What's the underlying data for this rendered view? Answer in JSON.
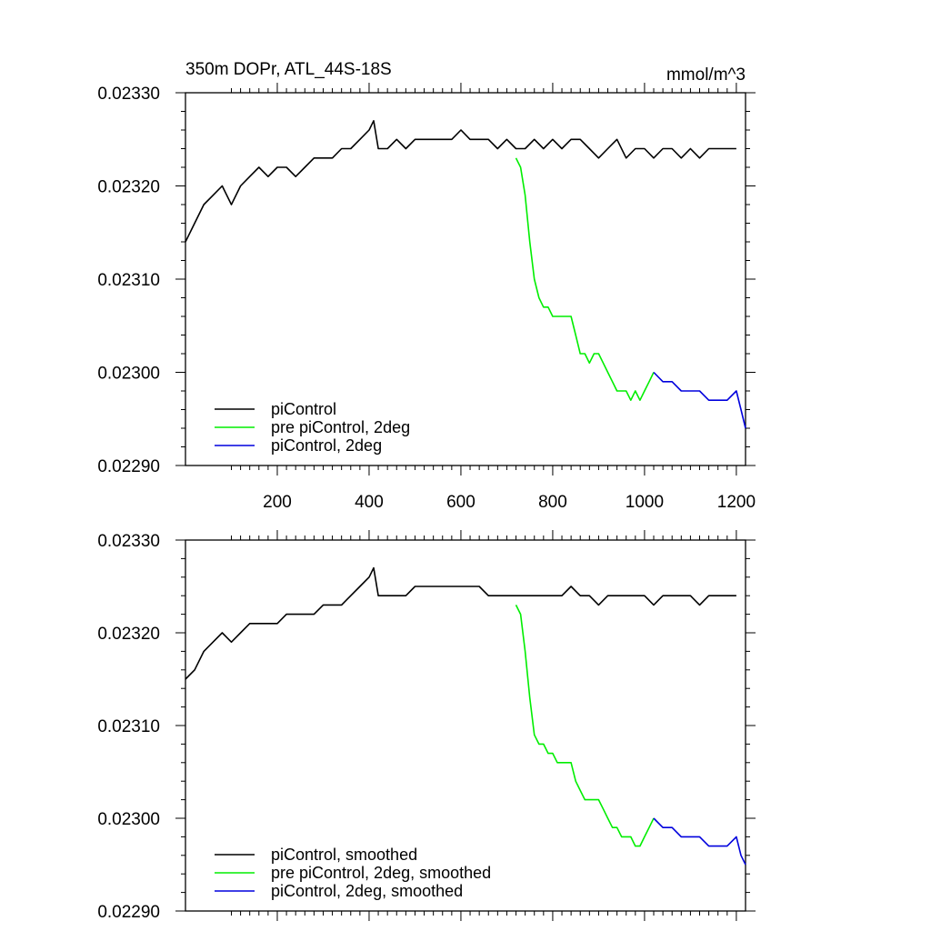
{
  "page": {
    "title": "350m DOPr, ATL_44S-18S",
    "units": "mmol/m^3"
  },
  "colors": {
    "piControl": "#000000",
    "pre": "#00ee00",
    "two_deg": "#0000dd"
  },
  "chart_data": [
    {
      "type": "line",
      "title": "350m DOPr, ATL_44S-18S",
      "units": "mmol/m^3",
      "xlim": [
        0,
        1220
      ],
      "ylim": [
        0.0229,
        0.0233
      ],
      "xticks": [
        200,
        400,
        600,
        800,
        1000,
        1200
      ],
      "xtick_labels": [
        "200",
        "400",
        "600",
        "800",
        "1000",
        "1200"
      ],
      "yticks": [
        0.0229,
        0.023,
        0.0231,
        0.0232,
        0.0233
      ],
      "ytick_labels": [
        "0.02290",
        "0.02300",
        "0.02310",
        "0.02320",
        "0.02330"
      ],
      "legend_position": "bottom-left",
      "series": [
        {
          "name": "piControl",
          "color": "#000000",
          "x": [
            0,
            20,
            40,
            60,
            80,
            100,
            120,
            140,
            160,
            180,
            200,
            220,
            240,
            260,
            280,
            300,
            320,
            340,
            360,
            380,
            400,
            410,
            420,
            440,
            460,
            480,
            500,
            520,
            540,
            560,
            580,
            600,
            620,
            640,
            660,
            680,
            700,
            720,
            740,
            760,
            780,
            800,
            820,
            840,
            860,
            880,
            900,
            920,
            940,
            960,
            980,
            1000,
            1020,
            1040,
            1060,
            1080,
            1100,
            1120,
            1140,
            1160,
            1180,
            1200
          ],
          "y": [
            0.02314,
            0.02316,
            0.02318,
            0.02319,
            0.0232,
            0.02318,
            0.0232,
            0.02321,
            0.02322,
            0.02321,
            0.02322,
            0.02322,
            0.02321,
            0.02322,
            0.02323,
            0.02323,
            0.02323,
            0.02324,
            0.02324,
            0.02325,
            0.02326,
            0.02327,
            0.02324,
            0.02324,
            0.02325,
            0.02324,
            0.02325,
            0.02325,
            0.02325,
            0.02325,
            0.02325,
            0.02326,
            0.02325,
            0.02325,
            0.02325,
            0.02324,
            0.02325,
            0.02324,
            0.02324,
            0.02325,
            0.02324,
            0.02325,
            0.02324,
            0.02325,
            0.02325,
            0.02324,
            0.02323,
            0.02324,
            0.02325,
            0.02323,
            0.02324,
            0.02324,
            0.02323,
            0.02324,
            0.02324,
            0.02323,
            0.02324,
            0.02323,
            0.02324,
            0.02324,
            0.02324,
            0.02324
          ]
        },
        {
          "name": "pre piControl, 2deg",
          "color": "#00ee00",
          "x": [
            720,
            730,
            740,
            750,
            760,
            770,
            780,
            790,
            800,
            810,
            820,
            830,
            840,
            850,
            860,
            870,
            880,
            890,
            900,
            910,
            920,
            930,
            940,
            950,
            960,
            970,
            980,
            990,
            1000,
            1010,
            1020
          ],
          "y": [
            0.02323,
            0.02322,
            0.02319,
            0.02314,
            0.0231,
            0.02308,
            0.02307,
            0.02307,
            0.02306,
            0.02306,
            0.02306,
            0.02306,
            0.02306,
            0.02304,
            0.02302,
            0.02302,
            0.02301,
            0.02302,
            0.02302,
            0.02301,
            0.023,
            0.02299,
            0.02298,
            0.02298,
            0.02298,
            0.02297,
            0.02298,
            0.02297,
            0.02298,
            0.02299,
            0.023
          ]
        },
        {
          "name": "piControl, 2deg",
          "color": "#0000dd",
          "x": [
            1020,
            1040,
            1060,
            1080,
            1100,
            1120,
            1140,
            1160,
            1180,
            1200,
            1210,
            1220
          ],
          "y": [
            0.023,
            0.02299,
            0.02299,
            0.02298,
            0.02298,
            0.02298,
            0.02297,
            0.02297,
            0.02297,
            0.02298,
            0.02296,
            0.02294
          ]
        }
      ]
    },
    {
      "type": "line",
      "xlim": [
        0,
        1220
      ],
      "ylim": [
        0.0229,
        0.0233
      ],
      "xticks": [
        200,
        400,
        600,
        800,
        1000,
        1200
      ],
      "yticks": [
        0.0229,
        0.023,
        0.0231,
        0.0232,
        0.0233
      ],
      "ytick_labels": [
        "0.02290",
        "0.02300",
        "0.02310",
        "0.02320",
        "0.02330"
      ],
      "legend_position": "bottom-left",
      "series": [
        {
          "name": "piControl, smoothed",
          "color": "#000000",
          "x": [
            0,
            20,
            40,
            60,
            80,
            100,
            120,
            140,
            160,
            180,
            200,
            220,
            240,
            260,
            280,
            300,
            320,
            340,
            360,
            380,
            400,
            410,
            420,
            440,
            460,
            480,
            500,
            520,
            540,
            560,
            580,
            600,
            620,
            640,
            660,
            680,
            700,
            720,
            740,
            760,
            780,
            800,
            820,
            840,
            860,
            880,
            900,
            920,
            940,
            960,
            980,
            1000,
            1020,
            1040,
            1060,
            1080,
            1100,
            1120,
            1140,
            1160,
            1180,
            1200
          ],
          "y": [
            0.02315,
            0.02316,
            0.02318,
            0.02319,
            0.0232,
            0.02319,
            0.0232,
            0.02321,
            0.02321,
            0.02321,
            0.02321,
            0.02322,
            0.02322,
            0.02322,
            0.02322,
            0.02323,
            0.02323,
            0.02323,
            0.02324,
            0.02325,
            0.02326,
            0.02327,
            0.02324,
            0.02324,
            0.02324,
            0.02324,
            0.02325,
            0.02325,
            0.02325,
            0.02325,
            0.02325,
            0.02325,
            0.02325,
            0.02325,
            0.02324,
            0.02324,
            0.02324,
            0.02324,
            0.02324,
            0.02324,
            0.02324,
            0.02324,
            0.02324,
            0.02325,
            0.02324,
            0.02324,
            0.02323,
            0.02324,
            0.02324,
            0.02324,
            0.02324,
            0.02324,
            0.02323,
            0.02324,
            0.02324,
            0.02324,
            0.02324,
            0.02323,
            0.02324,
            0.02324,
            0.02324,
            0.02324
          ]
        },
        {
          "name": "pre piControl, 2deg, smoothed",
          "color": "#00ee00",
          "x": [
            720,
            730,
            740,
            750,
            760,
            770,
            780,
            790,
            800,
            810,
            820,
            830,
            840,
            850,
            860,
            870,
            880,
            890,
            900,
            910,
            920,
            930,
            940,
            950,
            960,
            970,
            980,
            990,
            1000,
            1010,
            1020
          ],
          "y": [
            0.02323,
            0.02322,
            0.02318,
            0.02313,
            0.02309,
            0.02308,
            0.02308,
            0.02307,
            0.02307,
            0.02306,
            0.02306,
            0.02306,
            0.02306,
            0.02304,
            0.02303,
            0.02302,
            0.02302,
            0.02302,
            0.02302,
            0.02301,
            0.023,
            0.02299,
            0.02299,
            0.02298,
            0.02298,
            0.02298,
            0.02297,
            0.02297,
            0.02298,
            0.02299,
            0.023
          ]
        },
        {
          "name": "piControl, 2deg, smoothed",
          "color": "#0000dd",
          "x": [
            1020,
            1040,
            1060,
            1080,
            1100,
            1120,
            1140,
            1160,
            1180,
            1200,
            1210,
            1220
          ],
          "y": [
            0.023,
            0.02299,
            0.02299,
            0.02298,
            0.02298,
            0.02298,
            0.02297,
            0.02297,
            0.02297,
            0.02298,
            0.02296,
            0.02295
          ]
        }
      ]
    }
  ]
}
